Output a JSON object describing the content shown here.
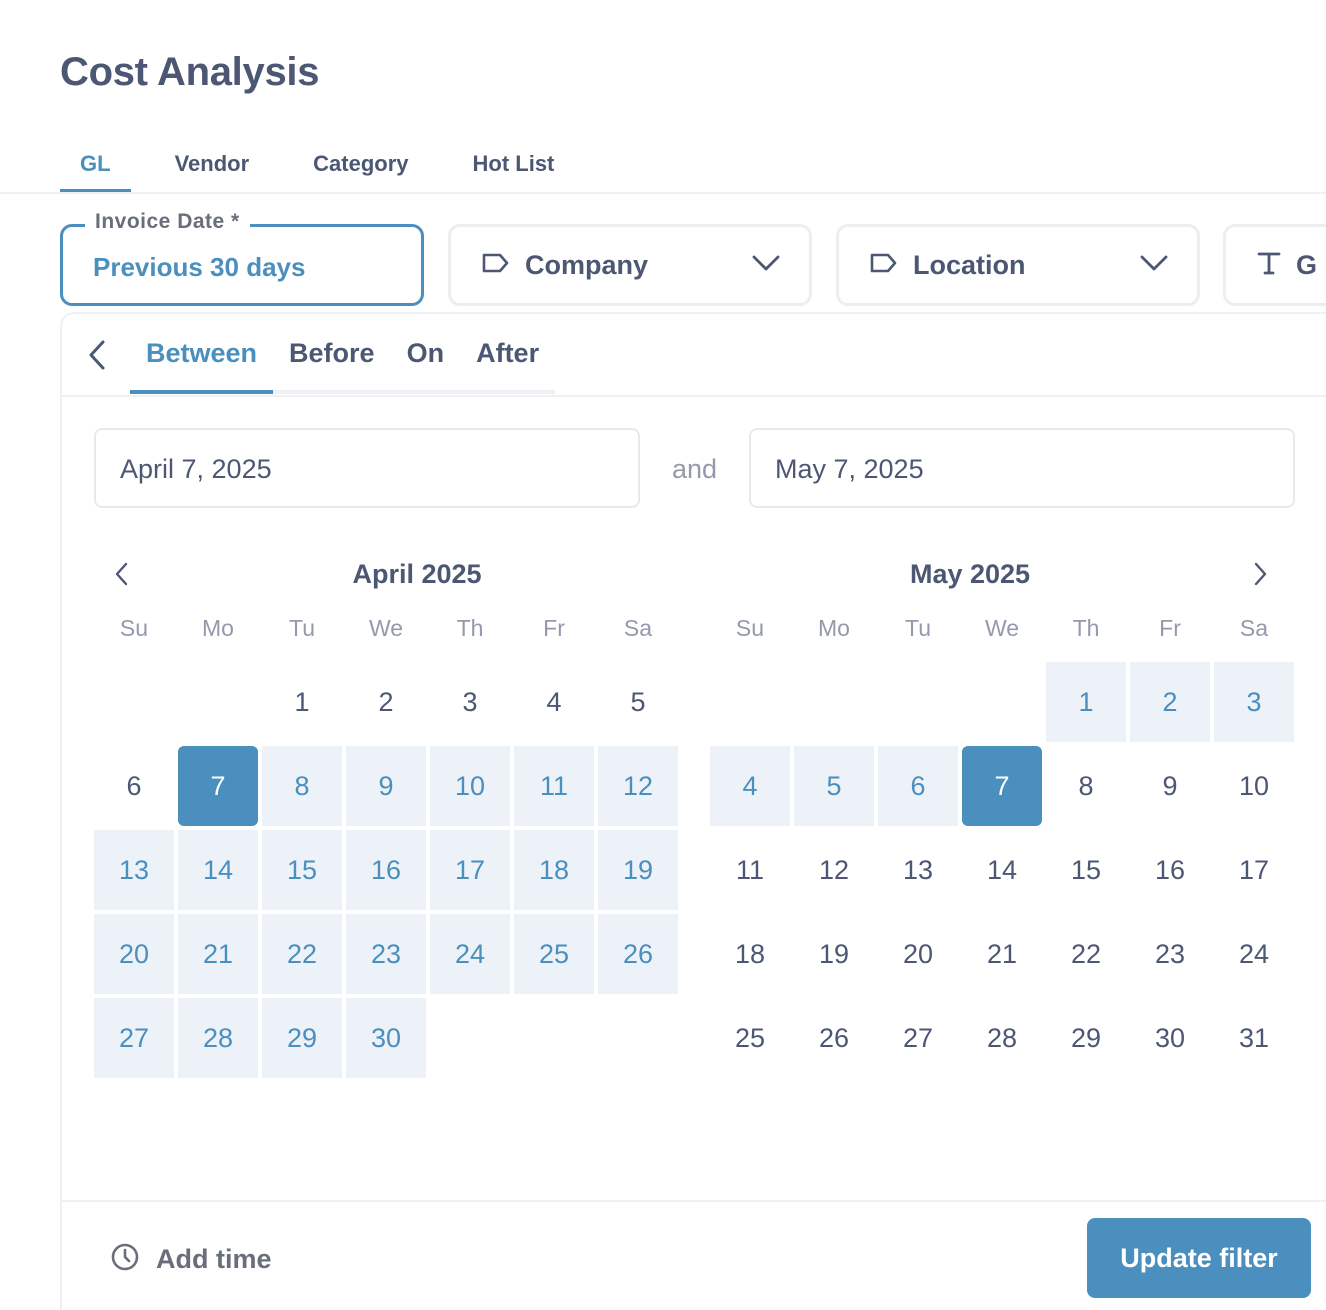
{
  "page": {
    "title": "Cost Analysis"
  },
  "tabs": [
    {
      "label": "GL",
      "active": true
    },
    {
      "label": "Vendor",
      "active": false
    },
    {
      "label": "Category",
      "active": false
    },
    {
      "label": "Hot List",
      "active": false
    }
  ],
  "filters": {
    "invoice_date": {
      "label": "Invoice Date *",
      "value": "Previous 30 days"
    },
    "company": {
      "label": "Company",
      "icon": "tag-icon"
    },
    "location": {
      "label": "Location",
      "icon": "tag-icon"
    },
    "g": {
      "label": "G",
      "icon": "text-type-icon"
    }
  },
  "picker": {
    "operators": [
      {
        "label": "Between",
        "active": true
      },
      {
        "label": "Before",
        "active": false
      },
      {
        "label": "On",
        "active": false
      },
      {
        "label": "After",
        "active": false
      }
    ],
    "start_value": "April 7, 2025",
    "end_value": "May 7, 2025",
    "and_label": "and",
    "weekdays": [
      "Su",
      "Mo",
      "Tu",
      "We",
      "Th",
      "Fr",
      "Sa"
    ],
    "months": [
      {
        "title": "April 2025",
        "first_weekday": 2,
        "days": 30,
        "range_start": 7,
        "range_end": 30,
        "endpoints": [
          7
        ]
      },
      {
        "title": "May 2025",
        "first_weekday": 4,
        "days": 31,
        "range_start": 1,
        "range_end": 7,
        "endpoints": [
          7
        ]
      }
    ],
    "add_time_label": "Add time",
    "update_label": "Update filter"
  },
  "colors": {
    "accent": "#4a8fbd",
    "range_bg": "#edf2f8",
    "text": "#4c5773",
    "muted": "#949aab"
  }
}
